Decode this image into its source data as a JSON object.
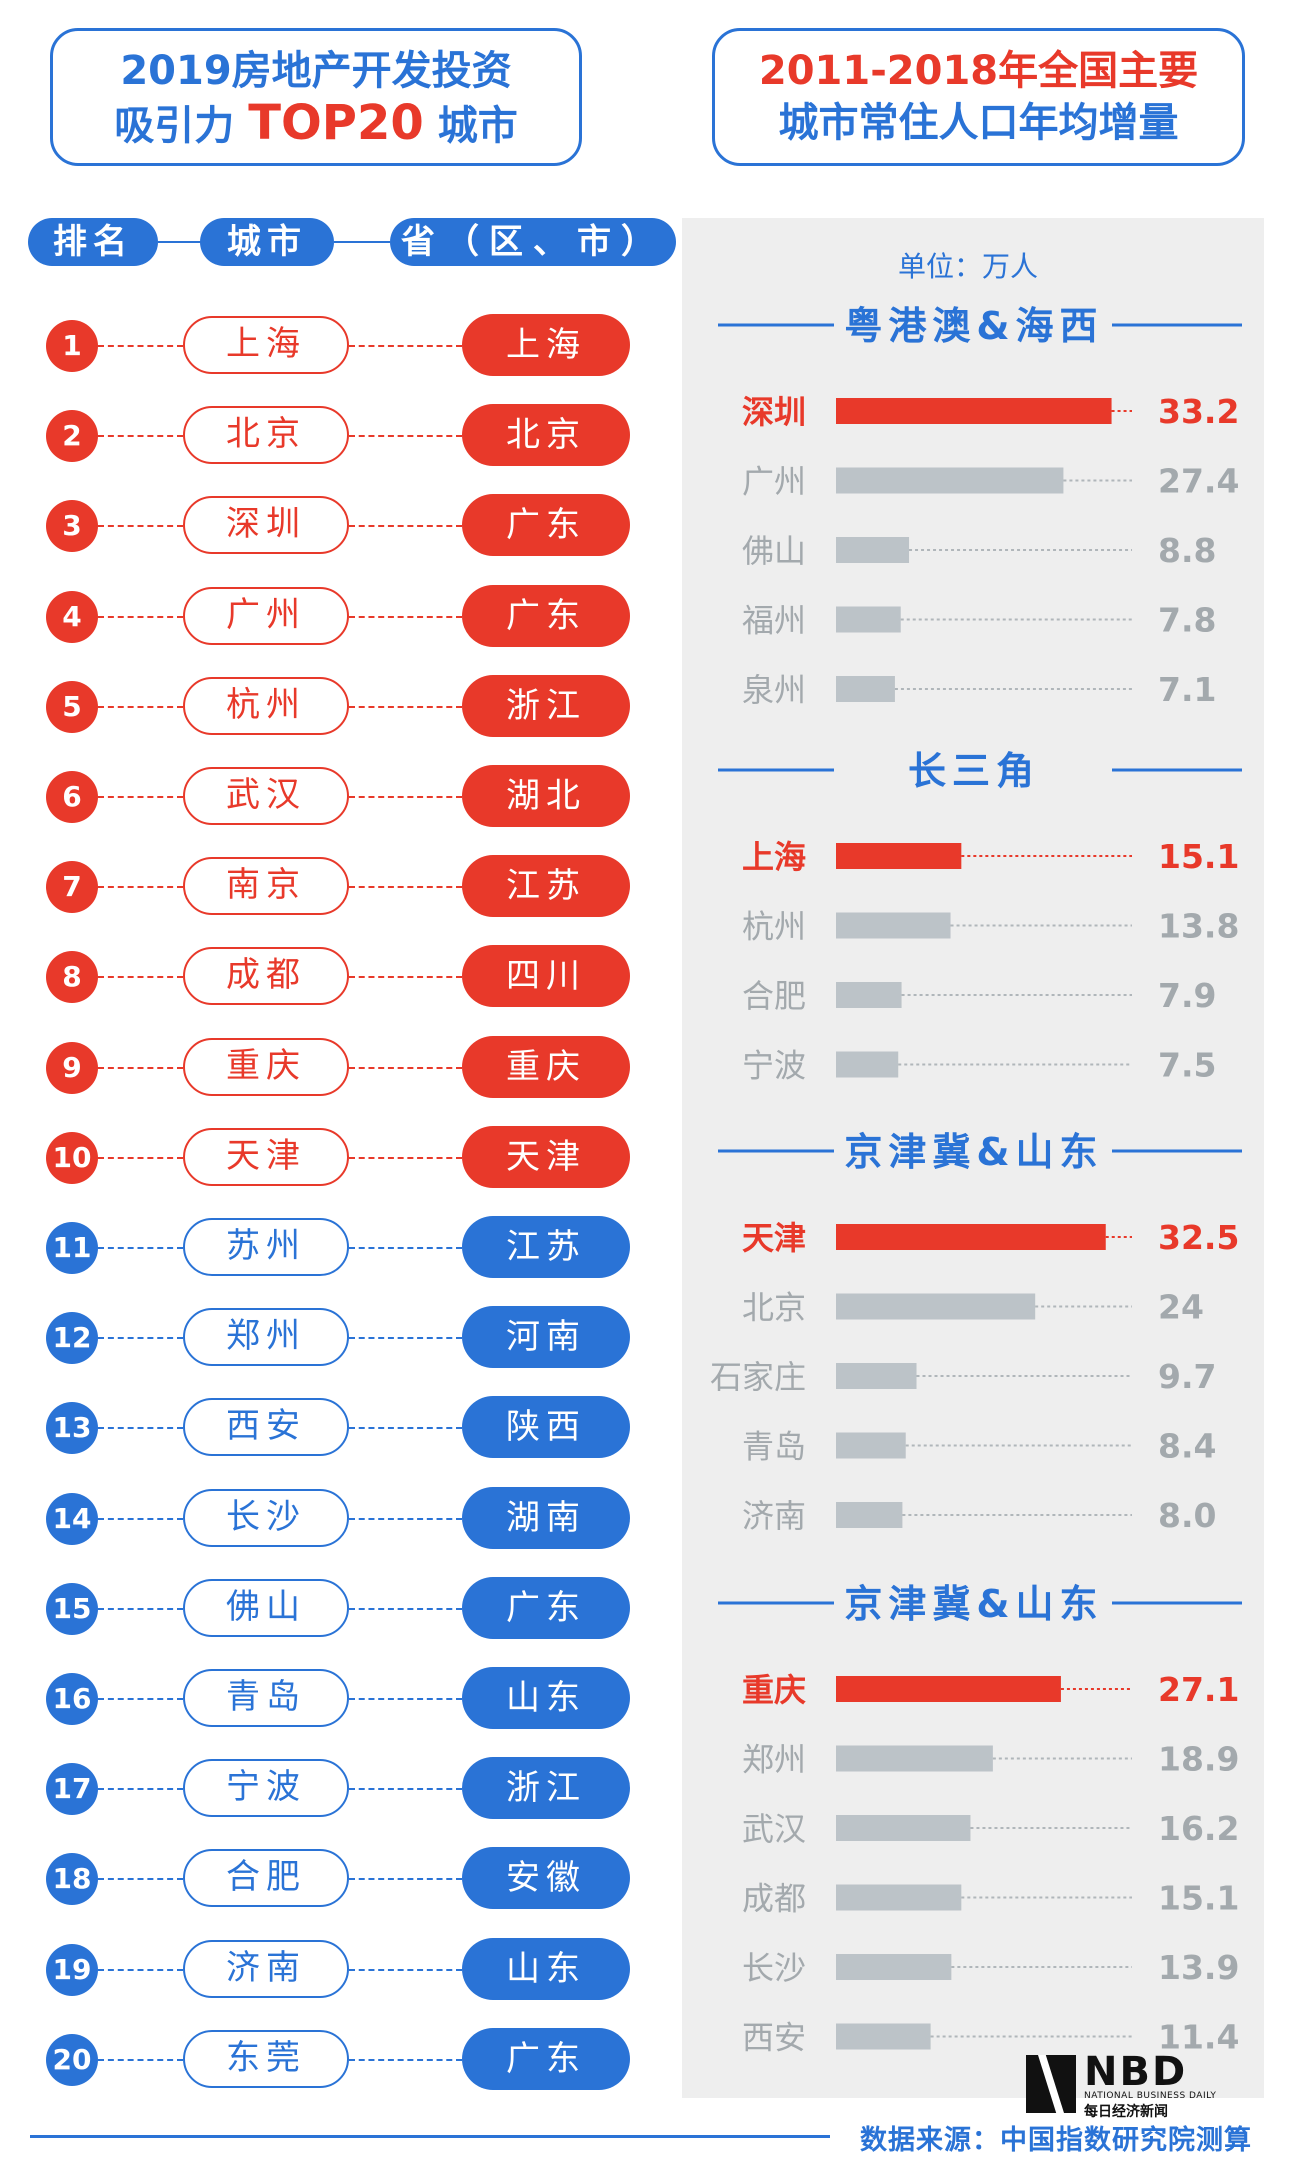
{
  "left_title": {
    "line1": "2019房地产开发投资",
    "line2_pre": "吸引力 ",
    "line2_big": "TOP20",
    "line2_post": " 城市"
  },
  "right_title": {
    "line1": "2011-2018年全国主要",
    "line2": "城市常住人口年均增量"
  },
  "headers": {
    "rank": "排名",
    "city": "城市",
    "province": "省（区、市）"
  },
  "ranking": [
    {
      "rank": "1",
      "city": "上海",
      "province": "上海"
    },
    {
      "rank": "2",
      "city": "北京",
      "province": "北京"
    },
    {
      "rank": "3",
      "city": "深圳",
      "province": "广东"
    },
    {
      "rank": "4",
      "city": "广州",
      "province": "广东"
    },
    {
      "rank": "5",
      "city": "杭州",
      "province": "浙江"
    },
    {
      "rank": "6",
      "city": "武汉",
      "province": "湖北"
    },
    {
      "rank": "7",
      "city": "南京",
      "province": "江苏"
    },
    {
      "rank": "8",
      "city": "成都",
      "province": "四川"
    },
    {
      "rank": "9",
      "city": "重庆",
      "province": "重庆"
    },
    {
      "rank": "10",
      "city": "天津",
      "province": "天津"
    },
    {
      "rank": "11",
      "city": "苏州",
      "province": "江苏"
    },
    {
      "rank": "12",
      "city": "郑州",
      "province": "河南"
    },
    {
      "rank": "13",
      "city": "西安",
      "province": "陕西"
    },
    {
      "rank": "14",
      "city": "长沙",
      "province": "湖南"
    },
    {
      "rank": "15",
      "city": "佛山",
      "province": "广东"
    },
    {
      "rank": "16",
      "city": "青岛",
      "province": "山东"
    },
    {
      "rank": "17",
      "city": "宁波",
      "province": "浙江"
    },
    {
      "rank": "18",
      "city": "合肥",
      "province": "安徽"
    },
    {
      "rank": "19",
      "city": "济南",
      "province": "山东"
    },
    {
      "rank": "20",
      "city": "东莞",
      "province": "广东"
    }
  ],
  "colors": {
    "red": "#e8392a",
    "blue": "#2a73d6",
    "gray_bar": "#bcc3c8",
    "gray_text": "#a3a9ad",
    "panel": "#eeeeee"
  },
  "chart_data": {
    "type": "bar",
    "orientation": "horizontal",
    "unit": "单位：万人",
    "groups": [
      {
        "name": "粤港澳&海西",
        "categories": [
          "深圳",
          "广州",
          "佛山",
          "福州",
          "泉州"
        ],
        "values": [
          33.2,
          27.4,
          8.8,
          7.8,
          7.1
        ],
        "highlight": 0
      },
      {
        "name": "长三角",
        "categories": [
          "上海",
          "杭州",
          "合肥",
          "宁波"
        ],
        "values": [
          15.1,
          13.8,
          7.9,
          7.5
        ],
        "highlight": 0
      },
      {
        "name": "京津冀&山东",
        "categories": [
          "天津",
          "北京",
          "石家庄",
          "青岛",
          "济南"
        ],
        "values": [
          32.5,
          24,
          9.7,
          8.4,
          8.0
        ],
        "highlight": 0
      },
      {
        "name": "京津冀&山东",
        "categories": [
          "重庆",
          "郑州",
          "武汉",
          "成都",
          "长沙",
          "西安"
        ],
        "values": [
          27.1,
          18.9,
          16.2,
          15.1,
          13.9,
          11.4
        ],
        "highlight": 0
      }
    ],
    "value_labels": [
      [
        "33.2",
        "27.4",
        "8.8",
        "7.8",
        "7.1"
      ],
      [
        "15.1",
        "13.8",
        "7.9",
        "7.5"
      ],
      [
        "32.5",
        "24",
        "9.7",
        "8.4",
        "8.0"
      ],
      [
        "27.1",
        "18.9",
        "16.2",
        "15.1",
        "13.9",
        "11.4"
      ]
    ]
  },
  "footer": {
    "source": "数据来源：中国指数研究院测算"
  },
  "logo": {
    "text": "NBD",
    "en": "NATIONAL BUSINESS DAILY",
    "cn": "每日经济新闻"
  }
}
